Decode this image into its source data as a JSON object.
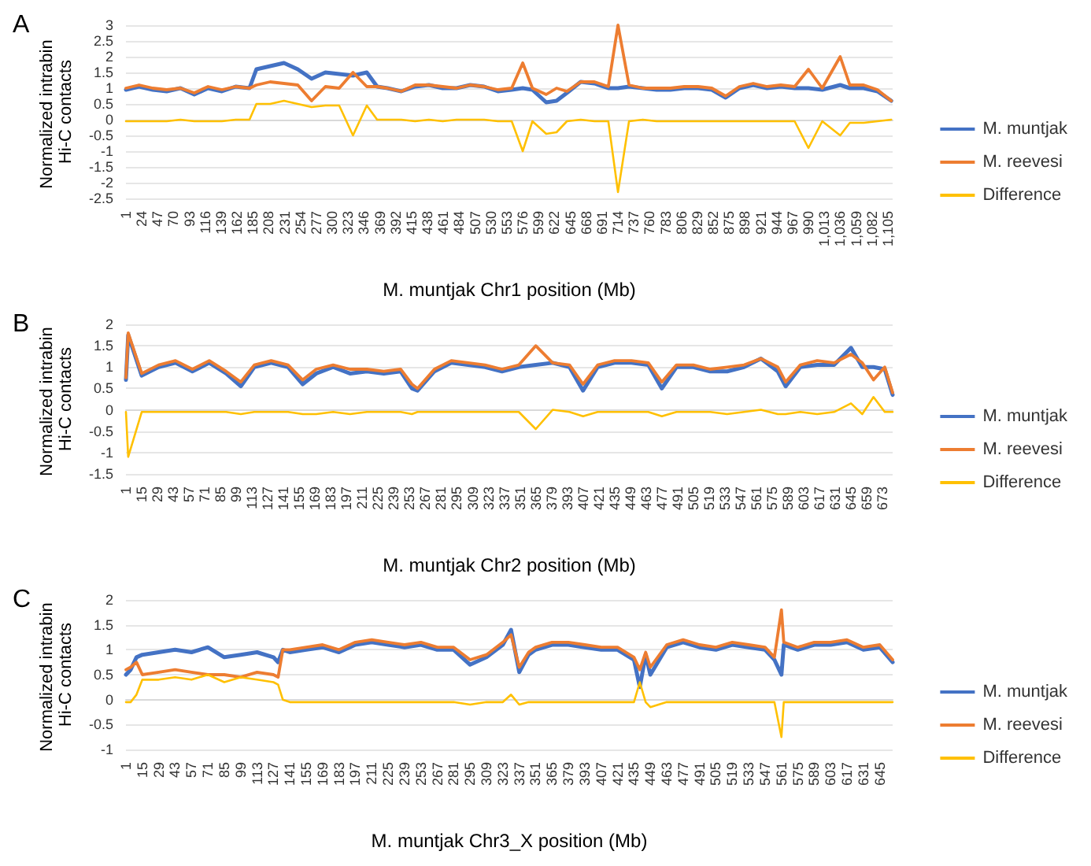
{
  "chart_data": [
    {
      "type": "line",
      "annotations": [
        "A"
      ],
      "xlabel": "M. muntjak Chr1 position (Mb)",
      "ylabel": "Normalized intrabin Hi-C contacts",
      "legend": "right",
      "grid": "y",
      "marker": "none",
      "line_style": "solid",
      "xlim": [
        1,
        1112
      ],
      "ylim": [
        -2.5,
        3
      ],
      "yticks": [
        -2.5,
        -2,
        -1.5,
        -1,
        -0.5,
        0,
        0.5,
        1,
        1.5,
        2,
        2.5,
        3
      ],
      "xticks": [
        1,
        24,
        47,
        70,
        93,
        116,
        139,
        162,
        185,
        208,
        231,
        254,
        277,
        300,
        323,
        346,
        369,
        392,
        415,
        438,
        461,
        484,
        507,
        530,
        553,
        576,
        599,
        622,
        645,
        668,
        691,
        714,
        737,
        760,
        783,
        806,
        829,
        852,
        875,
        898,
        921,
        944,
        967,
        990,
        {
          "value": 1013,
          "label": "1,013"
        },
        {
          "value": 1036,
          "label": "1,036"
        },
        {
          "value": 1059,
          "label": "1,059"
        },
        {
          "value": 1082,
          "label": "1,082"
        },
        {
          "value": 1105,
          "label": "1,105"
        }
      ],
      "x": [
        1,
        20,
        40,
        60,
        80,
        100,
        120,
        140,
        160,
        180,
        190,
        210,
        230,
        250,
        270,
        290,
        310,
        330,
        350,
        365,
        380,
        400,
        420,
        440,
        460,
        480,
        500,
        520,
        540,
        560,
        576,
        590,
        610,
        625,
        640,
        660,
        680,
        700,
        714,
        730,
        750,
        770,
        790,
        810,
        830,
        850,
        870,
        890,
        910,
        930,
        950,
        970,
        990,
        1010,
        1036,
        1050,
        1070,
        1090,
        1110
      ],
      "series": [
        {
          "name": "M. muntjak",
          "color": "#4472c4",
          "values": [
            0.95,
            1.05,
            0.95,
            0.9,
            1.0,
            0.8,
            1.0,
            0.9,
            1.05,
            1.0,
            1.6,
            1.7,
            1.8,
            1.6,
            1.3,
            1.5,
            1.45,
            1.4,
            1.5,
            1.05,
            1.0,
            0.9,
            1.05,
            1.1,
            1.0,
            1.0,
            1.1,
            1.05,
            0.9,
            0.95,
            1.0,
            0.95,
            0.55,
            0.6,
            0.85,
            1.2,
            1.15,
            1.0,
            1.0,
            1.05,
            1.0,
            0.95,
            0.95,
            1.0,
            1.0,
            0.95,
            0.7,
            1.0,
            1.1,
            1.0,
            1.05,
            1.0,
            1.0,
            0.95,
            1.1,
            1.0,
            1.0,
            0.9,
            0.6
          ]
        },
        {
          "name": "M. reevesi",
          "color": "#ed7d31",
          "values": [
            1.0,
            1.1,
            1.0,
            0.95,
            1.0,
            0.85,
            1.05,
            0.95,
            1.05,
            1.0,
            1.1,
            1.2,
            1.15,
            1.1,
            0.6,
            1.05,
            1.0,
            1.5,
            1.05,
            1.05,
            1.0,
            0.9,
            1.1,
            1.1,
            1.05,
            1.0,
            1.1,
            1.05,
            0.95,
            1.0,
            1.8,
            1.0,
            0.8,
            1.0,
            0.9,
            1.2,
            1.2,
            1.05,
            3.0,
            1.1,
            1.0,
            1.0,
            1.0,
            1.05,
            1.05,
            1.0,
            0.75,
            1.05,
            1.15,
            1.05,
            1.1,
            1.05,
            1.6,
            1.0,
            2.0,
            1.1,
            1.1,
            0.95,
            0.6
          ]
        },
        {
          "name": "Difference",
          "color": "#ffc000",
          "values": [
            -0.05,
            -0.05,
            -0.05,
            -0.05,
            0,
            -0.05,
            -0.05,
            -0.05,
            0,
            0,
            0.5,
            0.5,
            0.6,
            0.5,
            0.4,
            0.45,
            0.45,
            -0.5,
            0.45,
            0,
            0,
            0,
            -0.05,
            0,
            -0.05,
            0,
            0,
            0,
            -0.05,
            -0.05,
            -1.0,
            -0.05,
            -0.45,
            -0.4,
            -0.05,
            0,
            -0.05,
            -0.05,
            -2.3,
            -0.05,
            0,
            -0.05,
            -0.05,
            -0.05,
            -0.05,
            -0.05,
            -0.05,
            -0.05,
            -0.05,
            -0.05,
            -0.05,
            -0.05,
            -0.9,
            -0.05,
            -0.5,
            -0.1,
            -0.1,
            -0.05,
            0
          ]
        }
      ]
    },
    {
      "type": "line",
      "annotations": [
        "B"
      ],
      "xlabel": "M. muntjak Chr2 position (Mb)",
      "ylabel": "Normalized intrabin Hi-C contacts",
      "legend": "right",
      "grid": "y",
      "marker": "none",
      "line_style": "solid",
      "xlim": [
        1,
        682
      ],
      "ylim": [
        -1.5,
        2
      ],
      "yticks": [
        -1.5,
        -1,
        -0.5,
        0,
        0.5,
        1,
        1.5,
        2
      ],
      "xticks": [
        1,
        15,
        29,
        43,
        57,
        71,
        85,
        99,
        113,
        127,
        141,
        155,
        169,
        183,
        197,
        211,
        225,
        239,
        253,
        267,
        281,
        295,
        309,
        323,
        337,
        351,
        365,
        379,
        393,
        407,
        421,
        435,
        449,
        463,
        477,
        491,
        505,
        519,
        533,
        547,
        561,
        575,
        589,
        603,
        617,
        631,
        645,
        659,
        673
      ],
      "x": [
        1,
        3,
        15,
        30,
        45,
        60,
        75,
        90,
        103,
        115,
        130,
        145,
        158,
        170,
        185,
        200,
        215,
        230,
        245,
        255,
        260,
        275,
        290,
        305,
        320,
        335,
        350,
        365,
        380,
        395,
        407,
        420,
        435,
        450,
        465,
        477,
        490,
        505,
        520,
        535,
        550,
        565,
        580,
        587,
        600,
        615,
        630,
        645,
        655,
        665,
        675,
        682
      ],
      "series": [
        {
          "name": "M. muntjak",
          "color": "#4472c4",
          "values": [
            0.7,
            1.75,
            0.8,
            1.0,
            1.1,
            0.9,
            1.1,
            0.85,
            0.55,
            1.0,
            1.1,
            1.0,
            0.6,
            0.85,
            1.0,
            0.85,
            0.9,
            0.85,
            0.9,
            0.5,
            0.45,
            0.9,
            1.1,
            1.05,
            1.0,
            0.9,
            1.0,
            1.05,
            1.1,
            1.0,
            0.45,
            1.0,
            1.1,
            1.1,
            1.05,
            0.5,
            1.0,
            1.0,
            0.9,
            0.9,
            1.0,
            1.2,
            0.9,
            0.55,
            1.0,
            1.05,
            1.05,
            1.45,
            1.0,
            1.0,
            0.95,
            0.35
          ]
        },
        {
          "name": "M. reevesi",
          "color": "#ed7d31",
          "values": [
            0.75,
            1.8,
            0.85,
            1.05,
            1.15,
            0.95,
            1.15,
            0.9,
            0.65,
            1.05,
            1.15,
            1.05,
            0.7,
            0.95,
            1.05,
            0.95,
            0.95,
            0.9,
            0.95,
            0.6,
            0.5,
            0.95,
            1.15,
            1.1,
            1.05,
            0.95,
            1.05,
            1.5,
            1.1,
            1.05,
            0.6,
            1.05,
            1.15,
            1.15,
            1.1,
            0.65,
            1.05,
            1.05,
            0.95,
            1.0,
            1.05,
            1.2,
            1.0,
            0.65,
            1.05,
            1.15,
            1.1,
            1.3,
            1.1,
            0.7,
            1.0,
            0.4
          ]
        },
        {
          "name": "Difference",
          "color": "#ffc000",
          "values": [
            -0.05,
            -1.1,
            -0.05,
            -0.05,
            -0.05,
            -0.05,
            -0.05,
            -0.05,
            -0.1,
            -0.05,
            -0.05,
            -0.05,
            -0.1,
            -0.1,
            -0.05,
            -0.1,
            -0.05,
            -0.05,
            -0.05,
            -0.1,
            -0.05,
            -0.05,
            -0.05,
            -0.05,
            -0.05,
            -0.05,
            -0.05,
            -0.45,
            0,
            -0.05,
            -0.15,
            -0.05,
            -0.05,
            -0.05,
            -0.05,
            -0.15,
            -0.05,
            -0.05,
            -0.05,
            -0.1,
            -0.05,
            0,
            -0.1,
            -0.1,
            -0.05,
            -0.1,
            -0.05,
            0.15,
            -0.1,
            0.3,
            -0.05,
            -0.05
          ]
        }
      ]
    },
    {
      "type": "line",
      "annotations": [
        "C"
      ],
      "xlabel": "M. muntjak Chr3_X position (Mb)",
      "ylabel": "Normalized intrabin Hi-C contacts",
      "legend": "right",
      "grid": "y",
      "marker": "none",
      "line_style": "solid",
      "xlim": [
        1,
        656
      ],
      "ylim": [
        -1,
        2
      ],
      "yticks": [
        -1,
        -0.5,
        0,
        0.5,
        1,
        1.5,
        2
      ],
      "xticks": [
        1,
        15,
        29,
        43,
        57,
        71,
        85,
        99,
        113,
        127,
        141,
        155,
        169,
        183,
        197,
        211,
        225,
        239,
        253,
        267,
        281,
        295,
        309,
        323,
        337,
        351,
        365,
        379,
        393,
        407,
        421,
        435,
        449,
        463,
        477,
        491,
        505,
        519,
        533,
        547,
        561,
        575,
        589,
        603,
        617,
        631,
        645
      ],
      "x": [
        1,
        5,
        10,
        15,
        29,
        43,
        57,
        71,
        85,
        99,
        113,
        127,
        131,
        135,
        141,
        155,
        169,
        183,
        197,
        211,
        225,
        239,
        253,
        267,
        281,
        295,
        309,
        323,
        330,
        337,
        345,
        351,
        365,
        379,
        393,
        407,
        421,
        435,
        440,
        445,
        449,
        463,
        477,
        491,
        505,
        519,
        533,
        547,
        555,
        561,
        563,
        575,
        589,
        603,
        617,
        631,
        645,
        656
      ],
      "series": [
        {
          "name": "M. muntjak",
          "color": "#4472c4",
          "values": [
            0.5,
            0.6,
            0.85,
            0.9,
            0.95,
            1.0,
            0.95,
            1.05,
            0.85,
            0.9,
            0.95,
            0.85,
            0.75,
            1.0,
            0.95,
            1.0,
            1.05,
            0.95,
            1.1,
            1.15,
            1.1,
            1.05,
            1.1,
            1.0,
            1.0,
            0.7,
            0.85,
            1.1,
            1.4,
            0.55,
            0.9,
            1.0,
            1.1,
            1.1,
            1.05,
            1.0,
            1.0,
            0.8,
            0.25,
            0.9,
            0.5,
            1.05,
            1.15,
            1.05,
            1.0,
            1.1,
            1.05,
            1.0,
            0.8,
            0.5,
            1.1,
            1.0,
            1.1,
            1.1,
            1.15,
            1.0,
            1.05,
            0.75
          ]
        },
        {
          "name": "M. reevesi",
          "color": "#ed7d31",
          "values": [
            0.6,
            0.65,
            0.75,
            0.5,
            0.55,
            0.6,
            0.55,
            0.5,
            0.5,
            0.45,
            0.55,
            0.5,
            0.45,
            1.0,
            1.0,
            1.05,
            1.1,
            1.0,
            1.15,
            1.2,
            1.15,
            1.1,
            1.15,
            1.05,
            1.05,
            0.8,
            0.9,
            1.15,
            1.3,
            0.65,
            0.95,
            1.05,
            1.15,
            1.15,
            1.1,
            1.05,
            1.05,
            0.85,
            0.6,
            0.95,
            0.65,
            1.1,
            1.2,
            1.1,
            1.05,
            1.15,
            1.1,
            1.05,
            0.85,
            1.8,
            1.15,
            1.05,
            1.15,
            1.15,
            1.2,
            1.05,
            1.1,
            0.8
          ]
        },
        {
          "name": "Difference",
          "color": "#ffc000",
          "values": [
            -0.05,
            -0.05,
            0.1,
            0.4,
            0.4,
            0.45,
            0.4,
            0.5,
            0.35,
            0.45,
            0.4,
            0.35,
            0.3,
            0,
            -0.05,
            -0.05,
            -0.05,
            -0.05,
            -0.05,
            -0.05,
            -0.05,
            -0.05,
            -0.05,
            -0.05,
            -0.05,
            -0.1,
            -0.05,
            -0.05,
            0.1,
            -0.1,
            -0.05,
            -0.05,
            -0.05,
            -0.05,
            -0.05,
            -0.05,
            -0.05,
            -0.05,
            0.35,
            -0.05,
            -0.15,
            -0.05,
            -0.05,
            -0.05,
            -0.05,
            -0.05,
            -0.05,
            -0.05,
            -0.05,
            -0.75,
            -0.05,
            -0.05,
            -0.05,
            -0.05,
            -0.05,
            -0.05,
            -0.05,
            -0.05
          ]
        }
      ]
    }
  ]
}
